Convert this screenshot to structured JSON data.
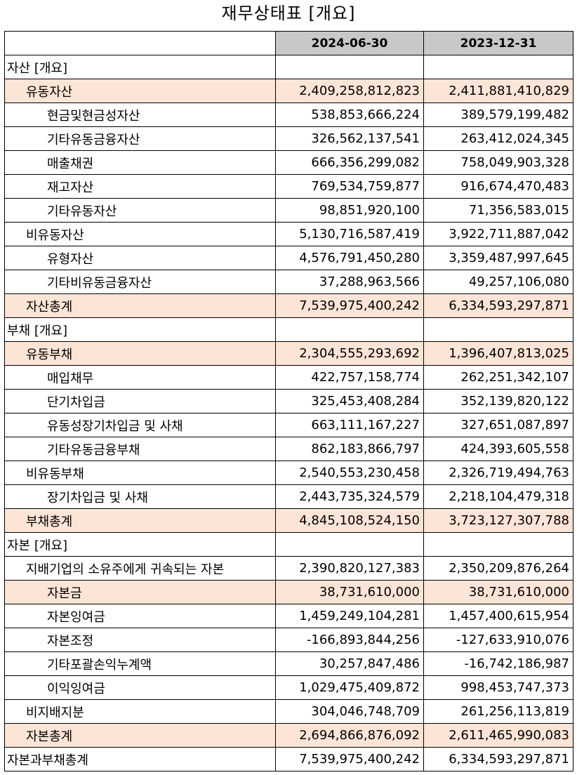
{
  "title": "재무상태표 [개요]",
  "columns": [
    "",
    "2024-06-30",
    "2023-12-31"
  ],
  "highlight_color": "#fce4d6",
  "header_color": "#c8c8c8",
  "rows": [
    {
      "label": "자산 [개요]",
      "level": 0,
      "hl": false,
      "v1": "",
      "v2": ""
    },
    {
      "label": "유동자산",
      "level": 1,
      "hl": true,
      "v1": "2,409,258,812,823",
      "v2": "2,411,881,410,829"
    },
    {
      "label": "현금및현금성자산",
      "level": 2,
      "hl": false,
      "v1": "538,853,666,224",
      "v2": "389,579,199,482"
    },
    {
      "label": "기타유동금융자산",
      "level": 2,
      "hl": false,
      "v1": "326,562,137,541",
      "v2": "263,412,024,345"
    },
    {
      "label": "매출채권",
      "level": 2,
      "hl": false,
      "v1": "666,356,299,082",
      "v2": "758,049,903,328"
    },
    {
      "label": "재고자산",
      "level": 2,
      "hl": false,
      "v1": "769,534,759,877",
      "v2": "916,674,470,483"
    },
    {
      "label": "기타유동자산",
      "level": 2,
      "hl": false,
      "v1": "98,851,920,100",
      "v2": "71,356,583,015"
    },
    {
      "label": "비유동자산",
      "level": 1,
      "hl": false,
      "v1": "5,130,716,587,419",
      "v2": "3,922,711,887,042"
    },
    {
      "label": "유형자산",
      "level": 2,
      "hl": false,
      "v1": "4,576,791,450,280",
      "v2": "3,359,487,997,645"
    },
    {
      "label": "기타비유동금융자산",
      "level": 2,
      "hl": false,
      "v1": "37,288,963,566",
      "v2": "49,257,106,080"
    },
    {
      "label": "자산총계",
      "level": 1,
      "hl": true,
      "v1": "7,539,975,400,242",
      "v2": "6,334,593,297,871"
    },
    {
      "label": "부채 [개요]",
      "level": 0,
      "hl": false,
      "v1": "",
      "v2": ""
    },
    {
      "label": "유동부채",
      "level": 1,
      "hl": true,
      "v1": "2,304,555,293,692",
      "v2": "1,396,407,813,025"
    },
    {
      "label": "매입채무",
      "level": 2,
      "hl": false,
      "v1": "422,757,158,774",
      "v2": "262,251,342,107"
    },
    {
      "label": "단기차입금",
      "level": 2,
      "hl": false,
      "v1": "325,453,408,284",
      "v2": "352,139,820,122"
    },
    {
      "label": "유동성장기차입금 및 사채",
      "level": 2,
      "hl": false,
      "v1": "663,111,167,227",
      "v2": "327,651,087,897"
    },
    {
      "label": "기타유동금융부채",
      "level": 2,
      "hl": false,
      "v1": "862,183,866,797",
      "v2": "424,393,605,558"
    },
    {
      "label": "비유동부채",
      "level": 1,
      "hl": false,
      "v1": "2,540,553,230,458",
      "v2": "2,326,719,494,763"
    },
    {
      "label": "장기차입금 및 사채",
      "level": 2,
      "hl": false,
      "v1": "2,443,735,324,579",
      "v2": "2,218,104,479,318"
    },
    {
      "label": "부채총계",
      "level": 1,
      "hl": true,
      "v1": "4,845,108,524,150",
      "v2": "3,723,127,307,788"
    },
    {
      "label": "자본 [개요]",
      "level": 0,
      "hl": false,
      "v1": "",
      "v2": ""
    },
    {
      "label": "지배기업의 소유주에게 귀속되는 자본",
      "level": 1,
      "hl": false,
      "v1": "2,390,820,127,383",
      "v2": "2,350,209,876,264"
    },
    {
      "label": "자본금",
      "level": 2,
      "hl": true,
      "v1": "38,731,610,000",
      "v2": "38,731,610,000"
    },
    {
      "label": "자본잉여금",
      "level": 2,
      "hl": false,
      "v1": "1,459,249,104,281",
      "v2": "1,457,400,615,954"
    },
    {
      "label": "자본조정",
      "level": 2,
      "hl": false,
      "v1": "-166,893,844,256",
      "v2": "-127,633,910,076"
    },
    {
      "label": "기타포괄손익누계액",
      "level": 2,
      "hl": false,
      "v1": "30,257,847,486",
      "v2": "-16,742,186,987"
    },
    {
      "label": "이익잉여금",
      "level": 2,
      "hl": false,
      "v1": "1,029,475,409,872",
      "v2": "998,453,747,373"
    },
    {
      "label": "비지배지분",
      "level": 1,
      "hl": false,
      "v1": "304,046,748,709",
      "v2": "261,256,113,819"
    },
    {
      "label": "자본총계",
      "level": 1,
      "hl": true,
      "v1": "2,694,866,876,092",
      "v2": "2,611,465,990,083"
    },
    {
      "label": "자본과부채총계",
      "level": 0,
      "hl": false,
      "v1": "7,539,975,400,242",
      "v2": "6,334,593,297,871"
    }
  ]
}
